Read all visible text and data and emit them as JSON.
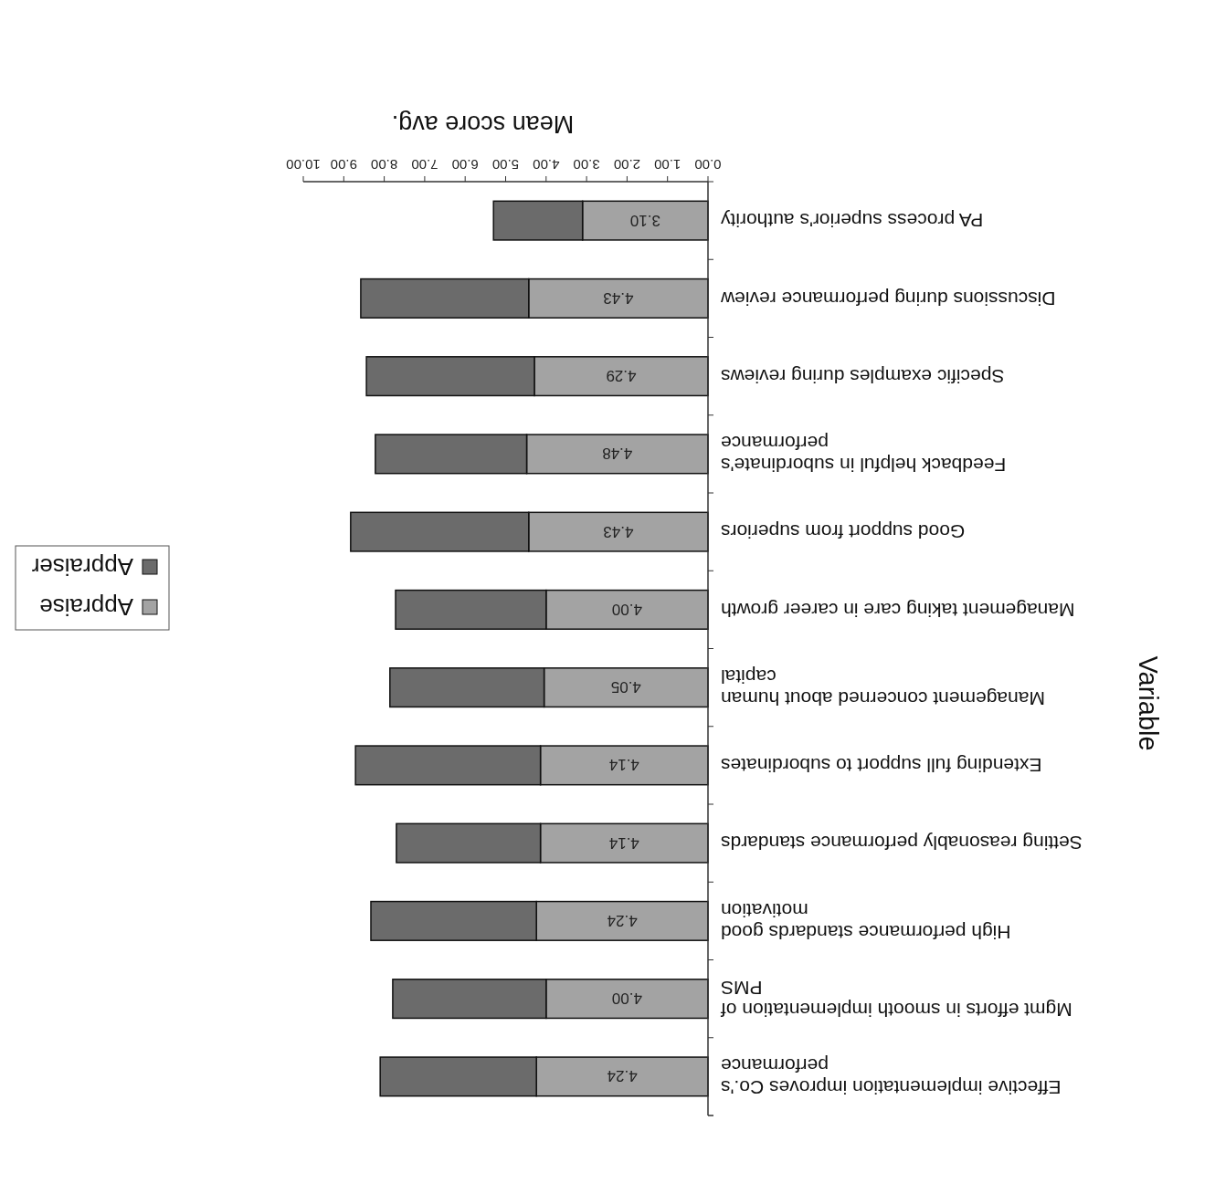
{
  "chart_data": {
    "type": "bar",
    "orientation": "horizontal",
    "stacked": true,
    "xlabel": "Mean score avg.",
    "ylabel": "Variable",
    "categories": [
      "PA process superior's authority",
      "Discussions during performance review",
      "Specific examples during reviews",
      "Feedback helpful in subordinate's performance",
      "Good support from superiors",
      "Management taking care in career growth",
      "Management concerned about human capital",
      "Extending full support to subordinates",
      "Setting reasonably performance standards",
      "High performance standards good motivation",
      "Mgmt efforts in smooth implementation of PMS",
      "Effective implementation improves Co.'s performance"
    ],
    "series": [
      {
        "name": "Appraise",
        "color": "#a3a3a3",
        "values": [
          3.1,
          4.43,
          4.29,
          4.48,
          4.43,
          4.0,
          4.05,
          4.14,
          4.14,
          4.24,
          4.0,
          4.24
        ],
        "value_labels": [
          "3.10",
          "4.43",
          "4.29",
          "4.48",
          "4.43",
          "4.00",
          "4.05",
          "4.14",
          "4.14",
          "4.24",
          "4.00",
          "4.24"
        ]
      },
      {
        "name": "Appraiser",
        "color": "#6b6b6b",
        "values": [
          2.2,
          4.15,
          4.15,
          3.74,
          4.4,
          3.72,
          3.81,
          4.57,
          3.56,
          4.09,
          3.79,
          3.86
        ]
      }
    ],
    "xlim": [
      10,
      0
    ],
    "xticks": [
      {
        "value": 0,
        "label": "0.00"
      },
      {
        "value": 1,
        "label": "1.00"
      },
      {
        "value": 2,
        "label": "2.00"
      },
      {
        "value": 3,
        "label": "3.00"
      },
      {
        "value": 4,
        "label": "4.00"
      },
      {
        "value": 5,
        "label": "5.00"
      },
      {
        "value": 6,
        "label": "6.00"
      },
      {
        "value": 7,
        "label": "7.00"
      },
      {
        "value": 8,
        "label": "8.00"
      },
      {
        "value": 9,
        "label": "9.00"
      },
      {
        "value": 10,
        "label": "10.00"
      }
    ],
    "grid": false,
    "legend": "left"
  }
}
